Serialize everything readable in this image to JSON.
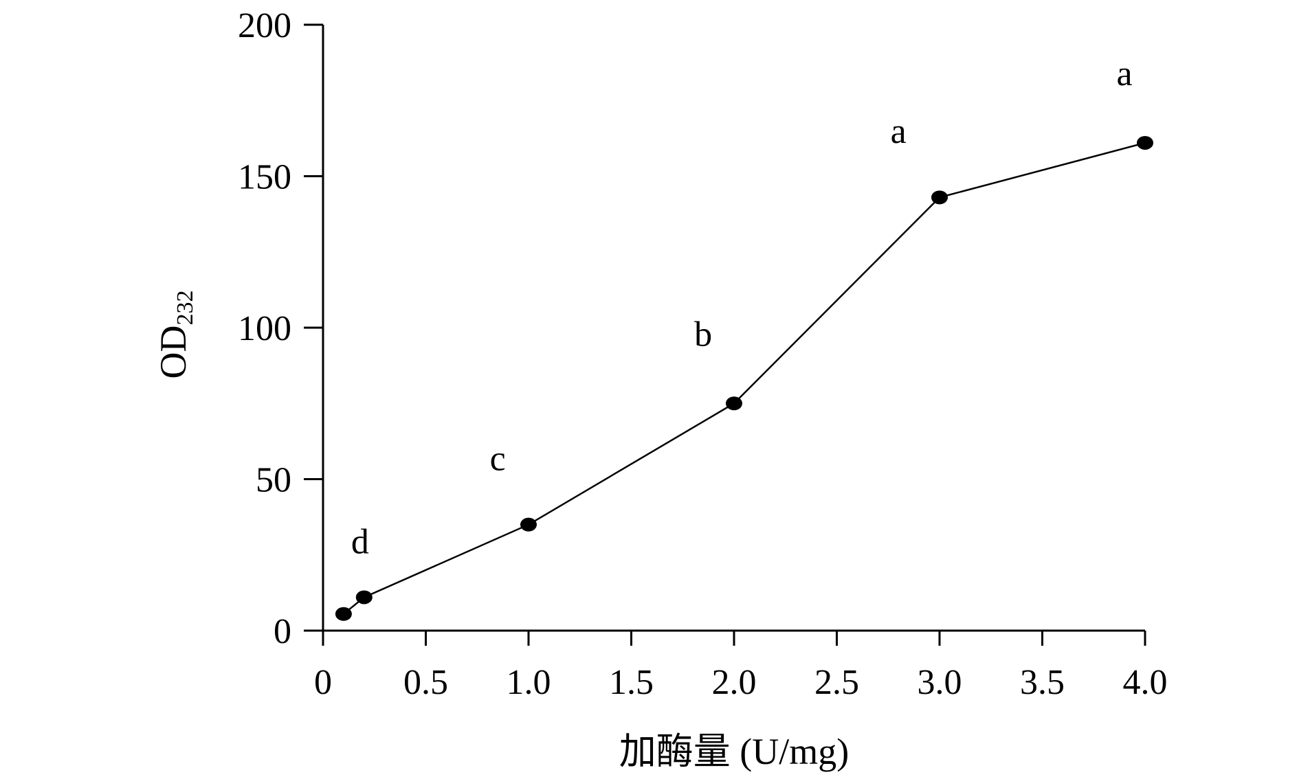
{
  "chart_data": {
    "type": "line",
    "xlabel": "加酶量 (U/mg)",
    "ylabel": {
      "main": "OD",
      "subscript": "232"
    },
    "xlim": [
      0,
      4.0
    ],
    "ylim": [
      0,
      200
    ],
    "x_ticks": [
      {
        "value": 0,
        "label": "0"
      },
      {
        "value": 0.5,
        "label": "0.5"
      },
      {
        "value": 1.0,
        "label": "1.0"
      },
      {
        "value": 1.5,
        "label": "1.5"
      },
      {
        "value": 2.0,
        "label": "2.0"
      },
      {
        "value": 2.5,
        "label": "2.5"
      },
      {
        "value": 3.0,
        "label": "3.0"
      },
      {
        "value": 3.5,
        "label": "3.5"
      },
      {
        "value": 4.0,
        "label": "4.0"
      }
    ],
    "y_ticks": [
      {
        "value": 0,
        "label": "0"
      },
      {
        "value": 50,
        "label": "50"
      },
      {
        "value": 100,
        "label": "100"
      },
      {
        "value": 150,
        "label": "150"
      },
      {
        "value": 200,
        "label": "200"
      }
    ],
    "series": [
      {
        "color": "#000000",
        "points": [
          {
            "x": 0.1,
            "y": 5.5
          },
          {
            "x": 0.2,
            "y": 11
          },
          {
            "x": 1.0,
            "y": 35
          },
          {
            "x": 2.0,
            "y": 75
          },
          {
            "x": 3.0,
            "y": 143
          },
          {
            "x": 4.0,
            "y": 161
          }
        ]
      }
    ],
    "annotations": [
      {
        "text": "d",
        "x": 0.18,
        "y": 25.5
      },
      {
        "text": "c",
        "x": 0.85,
        "y": 53
      },
      {
        "text": "b",
        "x": 1.85,
        "y": 94
      },
      {
        "text": "a",
        "x": 2.8,
        "y": 161
      },
      {
        "text": "a",
        "x": 3.9,
        "y": 180
      }
    ],
    "grid": false,
    "legend": "none"
  }
}
